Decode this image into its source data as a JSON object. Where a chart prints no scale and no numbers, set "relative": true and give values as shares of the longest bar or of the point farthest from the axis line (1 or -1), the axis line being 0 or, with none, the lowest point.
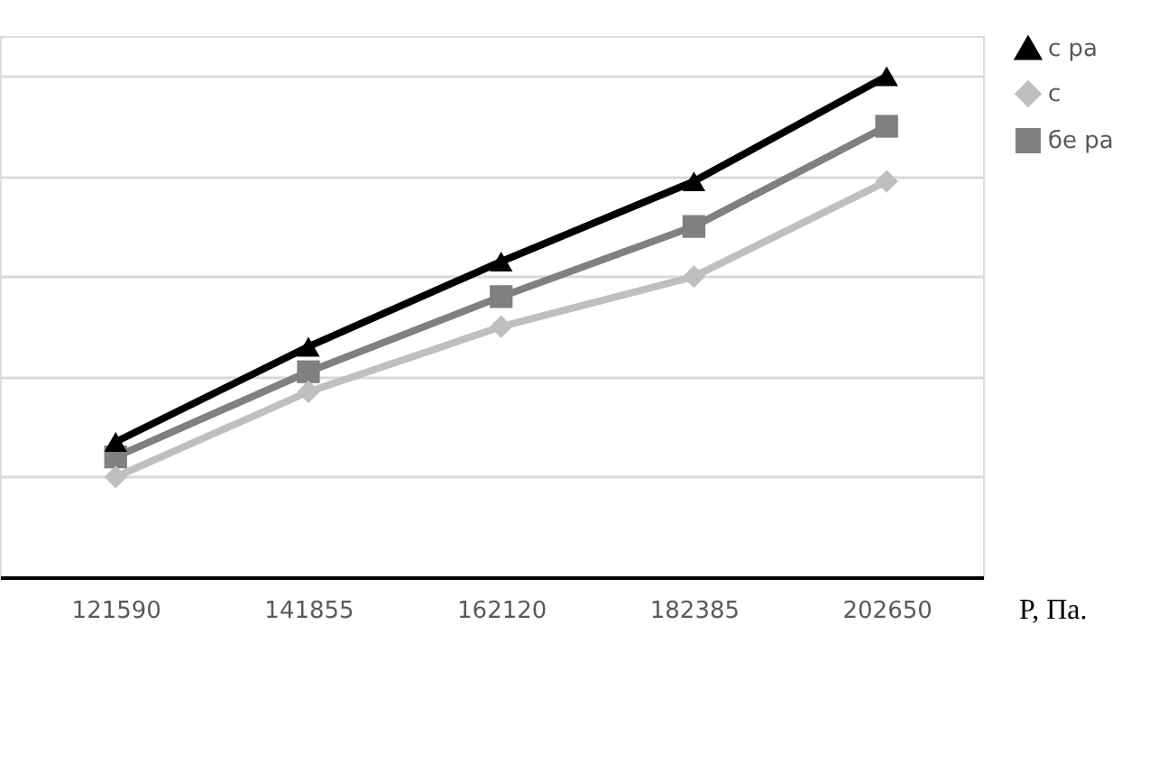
{
  "chart_data": {
    "type": "line",
    "relative": true,
    "xlabel": "P, Па.",
    "categories": [
      "121590",
      "141855",
      "162120",
      "182385",
      "202650"
    ],
    "series": [
      {
        "name": "с ра",
        "color": "#000000",
        "marker": "triangle",
        "values": [
          0.27,
          0.46,
          0.63,
          0.79,
          1
        ]
      },
      {
        "name": "с",
        "color": "#bfbfbf",
        "marker": "diamond",
        "values": [
          0.2,
          0.37,
          0.5,
          0.6,
          0.79
        ]
      },
      {
        "name": "бе ра",
        "color": "#808080",
        "marker": "square",
        "values": [
          0.24,
          0.41,
          0.56,
          0.7,
          0.9
        ]
      }
    ],
    "grid": "y",
    "legend": "right",
    "line_style": "solid"
  }
}
